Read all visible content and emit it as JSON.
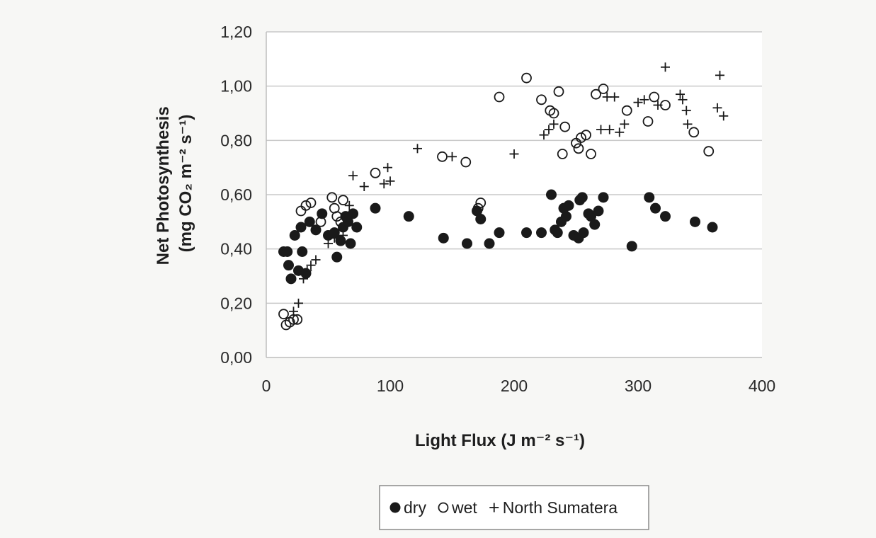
{
  "chart_data": {
    "type": "scatter",
    "xlabel": "Light Flux (J m⁻² s⁻¹)",
    "ylabel_line1": "Net Photosynthesis",
    "ylabel_line2": "(mg CO₂ m⁻² s⁻¹)",
    "xlim": [
      0,
      400
    ],
    "ylim": [
      0,
      1.2
    ],
    "x_ticks": [
      {
        "value": 0,
        "label": "0"
      },
      {
        "value": 100,
        "label": "100"
      },
      {
        "value": 200,
        "label": "200"
      },
      {
        "value": 300,
        "label": "300"
      },
      {
        "value": 400,
        "label": "400"
      }
    ],
    "y_ticks": [
      {
        "value": 0,
        "label": "0,00"
      },
      {
        "value": 0.2,
        "label": "0,20"
      },
      {
        "value": 0.4,
        "label": "0,40"
      },
      {
        "value": 0.6,
        "label": "0,60"
      },
      {
        "value": 0.8,
        "label": "0,80"
      },
      {
        "value": 1.0,
        "label": "1,00"
      },
      {
        "value": 1.2,
        "label": "1,20"
      }
    ],
    "grid": "horizontal",
    "legend_position": "bottom",
    "series": [
      {
        "name": "dry",
        "marker": "filled-circle",
        "color": "#1a1a1a",
        "points": [
          [
            14,
            0.39
          ],
          [
            17,
            0.39
          ],
          [
            18,
            0.34
          ],
          [
            20,
            0.29
          ],
          [
            23,
            0.45
          ],
          [
            26,
            0.32
          ],
          [
            28,
            0.48
          ],
          [
            29,
            0.39
          ],
          [
            32,
            0.31
          ],
          [
            35,
            0.5
          ],
          [
            40,
            0.47
          ],
          [
            45,
            0.53
          ],
          [
            50,
            0.45
          ],
          [
            55,
            0.46
          ],
          [
            57,
            0.37
          ],
          [
            60,
            0.43
          ],
          [
            62,
            0.48
          ],
          [
            64,
            0.52
          ],
          [
            66,
            0.5
          ],
          [
            68,
            0.42
          ],
          [
            70,
            0.53
          ],
          [
            73,
            0.48
          ],
          [
            88,
            0.55
          ],
          [
            115,
            0.52
          ],
          [
            143,
            0.44
          ],
          [
            162,
            0.42
          ],
          [
            170,
            0.54
          ],
          [
            173,
            0.51
          ],
          [
            180,
            0.42
          ],
          [
            188,
            0.46
          ],
          [
            210,
            0.46
          ],
          [
            222,
            0.46
          ],
          [
            230,
            0.6
          ],
          [
            233,
            0.47
          ],
          [
            235,
            0.46
          ],
          [
            238,
            0.5
          ],
          [
            240,
            0.55
          ],
          [
            242,
            0.52
          ],
          [
            244,
            0.56
          ],
          [
            248,
            0.45
          ],
          [
            252,
            0.44
          ],
          [
            253,
            0.58
          ],
          [
            255,
            0.59
          ],
          [
            256,
            0.46
          ],
          [
            260,
            0.53
          ],
          [
            262,
            0.52
          ],
          [
            265,
            0.49
          ],
          [
            268,
            0.54
          ],
          [
            272,
            0.59
          ],
          [
            295,
            0.41
          ],
          [
            309,
            0.59
          ],
          [
            314,
            0.55
          ],
          [
            322,
            0.52
          ],
          [
            346,
            0.5
          ],
          [
            360,
            0.48
          ]
        ]
      },
      {
        "name": "wet",
        "marker": "open-circle",
        "color": "#1a1a1a",
        "points": [
          [
            14,
            0.16
          ],
          [
            16,
            0.12
          ],
          [
            19,
            0.13
          ],
          [
            22,
            0.14
          ],
          [
            25,
            0.14
          ],
          [
            28,
            0.54
          ],
          [
            32,
            0.56
          ],
          [
            36,
            0.57
          ],
          [
            44,
            0.5
          ],
          [
            53,
            0.59
          ],
          [
            55,
            0.55
          ],
          [
            57,
            0.52
          ],
          [
            60,
            0.5
          ],
          [
            62,
            0.58
          ],
          [
            88,
            0.68
          ],
          [
            142,
            0.74
          ],
          [
            161,
            0.72
          ],
          [
            171,
            0.55
          ],
          [
            173,
            0.57
          ],
          [
            188,
            0.96
          ],
          [
            210,
            1.03
          ],
          [
            222,
            0.95
          ],
          [
            229,
            0.91
          ],
          [
            232,
            0.9
          ],
          [
            236,
            0.98
          ],
          [
            239,
            0.75
          ],
          [
            241,
            0.85
          ],
          [
            250,
            0.79
          ],
          [
            252,
            0.77
          ],
          [
            254,
            0.81
          ],
          [
            258,
            0.82
          ],
          [
            262,
            0.75
          ],
          [
            266,
            0.97
          ],
          [
            272,
            0.99
          ],
          [
            291,
            0.91
          ],
          [
            308,
            0.87
          ],
          [
            313,
            0.96
          ],
          [
            322,
            0.93
          ],
          [
            345,
            0.83
          ],
          [
            357,
            0.76
          ]
        ]
      },
      {
        "name": "North Sumatera",
        "marker": "plus",
        "color": "#1a1a1a",
        "points": [
          [
            22,
            0.17
          ],
          [
            26,
            0.2
          ],
          [
            30,
            0.29
          ],
          [
            33,
            0.32
          ],
          [
            36,
            0.34
          ],
          [
            40,
            0.36
          ],
          [
            50,
            0.42
          ],
          [
            55,
            0.44
          ],
          [
            62,
            0.45
          ],
          [
            67,
            0.56
          ],
          [
            70,
            0.67
          ],
          [
            79,
            0.63
          ],
          [
            95,
            0.64
          ],
          [
            98,
            0.7
          ],
          [
            100,
            0.65
          ],
          [
            122,
            0.77
          ],
          [
            150,
            0.74
          ],
          [
            200,
            0.75
          ],
          [
            224,
            0.82
          ],
          [
            228,
            0.84
          ],
          [
            232,
            0.86
          ],
          [
            270,
            0.84
          ],
          [
            275,
            0.96
          ],
          [
            277,
            0.84
          ],
          [
            281,
            0.96
          ],
          [
            285,
            0.83
          ],
          [
            289,
            0.86
          ],
          [
            300,
            0.94
          ],
          [
            305,
            0.95
          ],
          [
            316,
            0.93
          ],
          [
            322,
            1.07
          ],
          [
            334,
            0.97
          ],
          [
            336,
            0.95
          ],
          [
            339,
            0.91
          ],
          [
            340,
            0.86
          ],
          [
            364,
            0.92
          ],
          [
            366,
            1.04
          ],
          [
            369,
            0.89
          ]
        ]
      }
    ]
  },
  "legend": {
    "items": [
      {
        "label": "dry",
        "marker": "filled-circle"
      },
      {
        "label": "wet",
        "marker": "open-circle"
      },
      {
        "label": "North Sumatera",
        "marker": "plus"
      }
    ]
  },
  "colors": {
    "background": "#f7f7f5",
    "plot_area": "#ffffff",
    "gridline": "#c9c9c9",
    "axis": "#bdbdbd",
    "marker": "#1a1a1a"
  }
}
